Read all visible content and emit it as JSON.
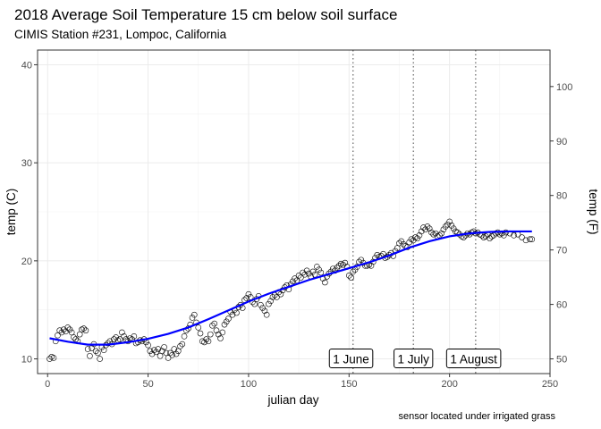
{
  "chart_data": {
    "type": "scatter",
    "title": "2018 Average Soil Temperature 15 cm below soil surface",
    "subtitle": "CIMIS Station #231, Lompoc, California",
    "xlabel": "julian day",
    "ylabel": "temp (C)",
    "ylabel_right": "temp (F)",
    "caption": "sensor located under irrigated grass",
    "xlim": [
      -5,
      250
    ],
    "ylim": [
      8.5,
      41.5
    ],
    "x_ticks": [
      0,
      50,
      100,
      150,
      200,
      250
    ],
    "y_ticks": [
      10,
      20,
      30,
      40
    ],
    "y_ticks_right": [
      50,
      60,
      70,
      80,
      90,
      100
    ],
    "grid": true,
    "vlines": [
      {
        "x": 152,
        "label": "1 June",
        "label_x": 151
      },
      {
        "x": 182,
        "label": "1 July",
        "label_x": 182
      },
      {
        "x": 213,
        "label": "1 August",
        "label_x": 212
      }
    ],
    "annotation_y": 10,
    "trend_color": "#0000ff",
    "points": [
      [
        1,
        10.0
      ],
      [
        2,
        10.2
      ],
      [
        3,
        10.1
      ],
      [
        4,
        11.8
      ],
      [
        5,
        12.4
      ],
      [
        6,
        12.9
      ],
      [
        7,
        12.7
      ],
      [
        8,
        13.0
      ],
      [
        9,
        12.8
      ],
      [
        10,
        13.2
      ],
      [
        11,
        13.0
      ],
      [
        12,
        12.7
      ],
      [
        13,
        12.2
      ],
      [
        14,
        12.0
      ],
      [
        15,
        11.8
      ],
      [
        16,
        12.5
      ],
      [
        17,
        13.0
      ],
      [
        18,
        13.1
      ],
      [
        19,
        12.9
      ],
      [
        20,
        11.0
      ],
      [
        21,
        10.3
      ],
      [
        22,
        11.1
      ],
      [
        23,
        11.5
      ],
      [
        24,
        10.8
      ],
      [
        25,
        10.6
      ],
      [
        26,
        10.0
      ],
      [
        27,
        11.2
      ],
      [
        28,
        10.9
      ],
      [
        29,
        11.4
      ],
      [
        30,
        11.6
      ],
      [
        31,
        11.8
      ],
      [
        32,
        11.5
      ],
      [
        33,
        12.0
      ],
      [
        34,
        12.2
      ],
      [
        35,
        11.9
      ],
      [
        36,
        12.0
      ],
      [
        37,
        12.7
      ],
      [
        38,
        12.3
      ],
      [
        39,
        12.0
      ],
      [
        40,
        11.8
      ],
      [
        41,
        12.1
      ],
      [
        42,
        12.0
      ],
      [
        43,
        12.3
      ],
      [
        44,
        11.6
      ],
      [
        45,
        11.7
      ],
      [
        46,
        11.9
      ],
      [
        47,
        11.8
      ],
      [
        48,
        12.0
      ],
      [
        49,
        11.7
      ],
      [
        50,
        11.4
      ],
      [
        51,
        10.8
      ],
      [
        52,
        10.5
      ],
      [
        53,
        10.9
      ],
      [
        54,
        10.7
      ],
      [
        55,
        11.0
      ],
      [
        56,
        10.3
      ],
      [
        57,
        10.8
      ],
      [
        58,
        11.2
      ],
      [
        59,
        10.6
      ],
      [
        60,
        10.1
      ],
      [
        61,
        10.6
      ],
      [
        62,
        10.4
      ],
      [
        63,
        11.0
      ],
      [
        64,
        10.5
      ],
      [
        65,
        10.8
      ],
      [
        66,
        11.3
      ],
      [
        67,
        11.5
      ],
      [
        68,
        12.3
      ],
      [
        69,
        12.9
      ],
      [
        70,
        13.1
      ],
      [
        71,
        13.5
      ],
      [
        72,
        14.2
      ],
      [
        73,
        14.5
      ],
      [
        74,
        13.7
      ],
      [
        75,
        13.2
      ],
      [
        76,
        12.6
      ],
      [
        77,
        11.8
      ],
      [
        78,
        11.7
      ],
      [
        79,
        12.0
      ],
      [
        80,
        11.8
      ],
      [
        81,
        12.5
      ],
      [
        82,
        13.4
      ],
      [
        83,
        13.6
      ],
      [
        84,
        12.9
      ],
      [
        85,
        12.5
      ],
      [
        86,
        12.1
      ],
      [
        87,
        12.7
      ],
      [
        88,
        13.5
      ],
      [
        89,
        13.8
      ],
      [
        90,
        14.1
      ],
      [
        91,
        14.8
      ],
      [
        92,
        14.5
      ],
      [
        93,
        15.0
      ],
      [
        94,
        14.7
      ],
      [
        95,
        15.3
      ],
      [
        96,
        15.5
      ],
      [
        97,
        15.2
      ],
      [
        98,
        16.0
      ],
      [
        99,
        16.2
      ],
      [
        100,
        16.6
      ],
      [
        101,
        16.3
      ],
      [
        102,
        15.8
      ],
      [
        103,
        15.6
      ],
      [
        104,
        16.1
      ],
      [
        105,
        16.4
      ],
      [
        106,
        15.5
      ],
      [
        107,
        15.2
      ],
      [
        108,
        14.9
      ],
      [
        109,
        14.5
      ],
      [
        110,
        15.6
      ],
      [
        111,
        15.9
      ],
      [
        112,
        16.3
      ],
      [
        113,
        16.5
      ],
      [
        114,
        16.3
      ],
      [
        115,
        16.8
      ],
      [
        116,
        16.6
      ],
      [
        117,
        17.0
      ],
      [
        118,
        17.3
      ],
      [
        119,
        17.5
      ],
      [
        120,
        17.1
      ],
      [
        121,
        17.6
      ],
      [
        122,
        17.9
      ],
      [
        123,
        18.2
      ],
      [
        124,
        18.0
      ],
      [
        125,
        18.5
      ],
      [
        126,
        18.3
      ],
      [
        127,
        18.8
      ],
      [
        128,
        18.6
      ],
      [
        129,
        19.0
      ],
      [
        130,
        18.7
      ],
      [
        131,
        18.4
      ],
      [
        132,
        18.9
      ],
      [
        133,
        18.6
      ],
      [
        134,
        19.4
      ],
      [
        135,
        19.1
      ],
      [
        136,
        18.8
      ],
      [
        137,
        18.2
      ],
      [
        138,
        17.8
      ],
      [
        139,
        18.4
      ],
      [
        140,
        18.7
      ],
      [
        141,
        18.9
      ],
      [
        142,
        19.2
      ],
      [
        143,
        19.0
      ],
      [
        144,
        19.3
      ],
      [
        145,
        19.5
      ],
      [
        146,
        19.7
      ],
      [
        147,
        19.6
      ],
      [
        148,
        19.8
      ],
      [
        149,
        19.4
      ],
      [
        150,
        18.5
      ],
      [
        151,
        18.3
      ],
      [
        152,
        18.9
      ],
      [
        153,
        19.1
      ],
      [
        154,
        19.4
      ],
      [
        155,
        19.9
      ],
      [
        156,
        20.1
      ],
      [
        157,
        19.8
      ],
      [
        158,
        19.5
      ],
      [
        159,
        19.5
      ],
      [
        160,
        19.6
      ],
      [
        161,
        19.5
      ],
      [
        162,
        19.9
      ],
      [
        163,
        20.3
      ],
      [
        164,
        20.6
      ],
      [
        165,
        20.4
      ],
      [
        166,
        20.5
      ],
      [
        167,
        20.7
      ],
      [
        168,
        20.3
      ],
      [
        169,
        20.4
      ],
      [
        170,
        20.6
      ],
      [
        171,
        20.8
      ],
      [
        172,
        20.5
      ],
      [
        173,
        21.0
      ],
      [
        174,
        21.3
      ],
      [
        175,
        21.8
      ],
      [
        176,
        22.0
      ],
      [
        177,
        21.7
      ],
      [
        178,
        21.5
      ],
      [
        179,
        21.4
      ],
      [
        180,
        21.9
      ],
      [
        181,
        22.2
      ],
      [
        182,
        22.1
      ],
      [
        183,
        22.4
      ],
      [
        184,
        22.3
      ],
      [
        185,
        22.6
      ],
      [
        186,
        23.0
      ],
      [
        187,
        23.4
      ],
      [
        188,
        23.2
      ],
      [
        189,
        23.5
      ],
      [
        190,
        23.3
      ],
      [
        191,
        22.9
      ],
      [
        192,
        22.7
      ],
      [
        193,
        22.8
      ],
      [
        194,
        22.5
      ],
      [
        195,
        22.6
      ],
      [
        196,
        22.8
      ],
      [
        197,
        23.2
      ],
      [
        198,
        23.5
      ],
      [
        199,
        23.7
      ],
      [
        200,
        24.0
      ],
      [
        201,
        23.6
      ],
      [
        202,
        23.3
      ],
      [
        203,
        23.0
      ],
      [
        204,
        22.9
      ],
      [
        205,
        22.7
      ],
      [
        206,
        22.5
      ],
      [
        207,
        22.4
      ],
      [
        208,
        22.6
      ],
      [
        209,
        22.8
      ],
      [
        210,
        22.7
      ],
      [
        211,
        22.9
      ],
      [
        212,
        23.0
      ],
      [
        213,
        22.8
      ],
      [
        214,
        22.9
      ],
      [
        215,
        22.7
      ],
      [
        216,
        22.6
      ],
      [
        217,
        22.4
      ],
      [
        218,
        22.5
      ],
      [
        219,
        22.7
      ],
      [
        220,
        22.3
      ],
      [
        221,
        22.5
      ],
      [
        222,
        22.6
      ],
      [
        223,
        22.8
      ],
      [
        224,
        22.9
      ],
      [
        225,
        22.7
      ],
      [
        226,
        22.8
      ],
      [
        227,
        22.6
      ],
      [
        228,
        22.9
      ],
      [
        230,
        22.8
      ],
      [
        232,
        22.6
      ],
      [
        234,
        22.7
      ],
      [
        236,
        22.4
      ],
      [
        238,
        22.1
      ],
      [
        240,
        22.2
      ],
      [
        241,
        22.2
      ]
    ],
    "trend": [
      [
        1,
        12.1
      ],
      [
        10,
        11.75
      ],
      [
        20,
        11.45
      ],
      [
        30,
        11.45
      ],
      [
        40,
        11.7
      ],
      [
        50,
        12.05
      ],
      [
        60,
        12.55
      ],
      [
        70,
        13.2
      ],
      [
        80,
        14.05
      ],
      [
        90,
        14.95
      ],
      [
        100,
        15.85
      ],
      [
        110,
        16.65
      ],
      [
        120,
        17.35
      ],
      [
        130,
        18.05
      ],
      [
        140,
        18.65
      ],
      [
        150,
        19.25
      ],
      [
        160,
        19.85
      ],
      [
        170,
        20.55
      ],
      [
        180,
        21.35
      ],
      [
        190,
        22.0
      ],
      [
        200,
        22.5
      ],
      [
        210,
        22.8
      ],
      [
        220,
        22.95
      ],
      [
        230,
        23.0
      ],
      [
        241,
        23.0
      ]
    ]
  }
}
